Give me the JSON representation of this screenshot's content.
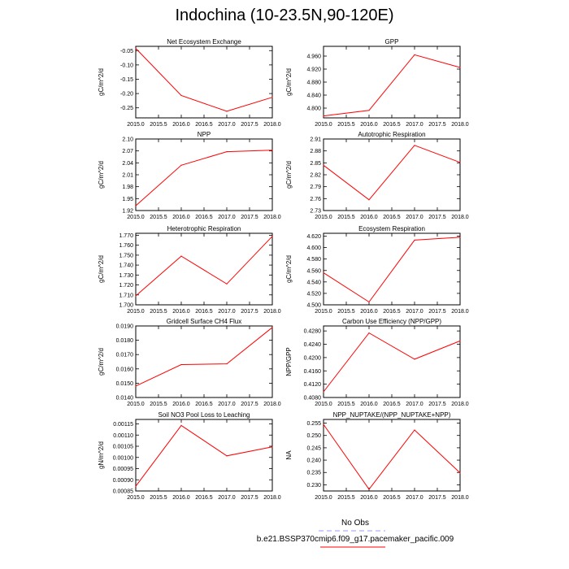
{
  "figure_title": "Indochina (10-23.5N,90-120E)",
  "legend": {
    "obs_label": "No Obs",
    "obs_color": "#9999ff",
    "model_label": "b.e21.BSSP370cmip6.f09_g17.pacemaker_pacific.009",
    "model_color": "#ff0000"
  },
  "chart_data": [
    {
      "type": "line",
      "title": "Net Ecosystem Exchange",
      "ylabel": "gC/m^2/d",
      "x": [
        2015.0,
        2016.0,
        2017.0,
        2018.0
      ],
      "values": [
        -0.042,
        -0.207,
        -0.262,
        -0.213
      ],
      "xlim": [
        2015.0,
        2018.0
      ],
      "ylim": [
        -0.285,
        -0.035
      ],
      "yticks": [
        -0.05,
        -0.1,
        -0.15,
        -0.2,
        -0.25
      ],
      "ytick_labels": [
        "-0.05",
        "-0.10",
        "-0.15",
        "-0.20",
        "-0.25"
      ],
      "xtick_labels": [
        "2015.0",
        "2015.5",
        "2016.0",
        "2016.5",
        "2017.0",
        "2017.5",
        "2018.0"
      ]
    },
    {
      "type": "line",
      "title": "GPP",
      "ylabel": "gC/m^2/d",
      "x": [
        2015.0,
        2016.0,
        2017.0,
        2018.0
      ],
      "values": [
        4.776,
        4.793,
        4.964,
        4.925
      ],
      "xlim": [
        2015.0,
        2018.0
      ],
      "ylim": [
        4.77,
        4.99
      ],
      "yticks": [
        4.8,
        4.84,
        4.88,
        4.92,
        4.96
      ],
      "ytick_labels": [
        "4.800",
        "4.840",
        "4.880",
        "4.920",
        "4.960"
      ],
      "xtick_labels": [
        "2015.0",
        "2015.5",
        "2016.0",
        "2016.5",
        "2017.0",
        "2017.5",
        "2018.0"
      ]
    },
    {
      "type": "line",
      "title": "NPP",
      "ylabel": "gC/m^2/d",
      "x": [
        2015.0,
        2016.0,
        2017.0,
        2018.0
      ],
      "values": [
        1.932,
        2.034,
        2.068,
        2.072
      ],
      "xlim": [
        2015.0,
        2018.0
      ],
      "ylim": [
        1.92,
        2.1
      ],
      "yticks": [
        1.92,
        1.95,
        1.98,
        2.01,
        2.04,
        2.07,
        2.1
      ],
      "ytick_labels": [
        "1.92",
        "1.95",
        "1.98",
        "2.01",
        "2.04",
        "2.07",
        "2.10"
      ],
      "xtick_labels": [
        "2015.0",
        "2015.5",
        "2016.0",
        "2016.5",
        "2017.0",
        "2017.5",
        "2018.0"
      ]
    },
    {
      "type": "line",
      "title": "Autotrophic Respiration",
      "ylabel": "gC/m^2/d",
      "x": [
        2015.0,
        2016.0,
        2017.0,
        2018.0
      ],
      "values": [
        2.844,
        2.757,
        2.894,
        2.851
      ],
      "xlim": [
        2015.0,
        2018.0
      ],
      "ylim": [
        2.73,
        2.91
      ],
      "yticks": [
        2.73,
        2.76,
        2.79,
        2.82,
        2.85,
        2.88,
        2.91
      ],
      "ytick_labels": [
        "2.73",
        "2.76",
        "2.79",
        "2.82",
        "2.85",
        "2.88",
        "2.91"
      ],
      "xtick_labels": [
        "2015.0",
        "2015.5",
        "2016.0",
        "2016.5",
        "2017.0",
        "2017.5",
        "2018.0"
      ]
    },
    {
      "type": "line",
      "title": "Heterotrophic Respiration",
      "ylabel": "gC/m^2/d",
      "x": [
        2015.0,
        2016.0,
        2017.0,
        2018.0
      ],
      "values": [
        1.709,
        1.749,
        1.721,
        1.769
      ],
      "xlim": [
        2015.0,
        2018.0
      ],
      "ylim": [
        1.7,
        1.772
      ],
      "yticks": [
        1.7,
        1.71,
        1.72,
        1.73,
        1.74,
        1.75,
        1.76,
        1.77
      ],
      "ytick_labels": [
        "1.700",
        "1.710",
        "1.720",
        "1.730",
        "1.740",
        "1.750",
        "1.760",
        "1.770"
      ],
      "xtick_labels": [
        "2015.0",
        "2015.5",
        "2016.0",
        "2016.5",
        "2017.0",
        "2017.5",
        "2018.0"
      ]
    },
    {
      "type": "line",
      "title": "Ecosystem Respiration",
      "ylabel": "gC/m^2/d",
      "x": [
        2015.0,
        2016.0,
        2017.0,
        2018.0
      ],
      "values": [
        4.556,
        4.505,
        4.613,
        4.618
      ],
      "xlim": [
        2015.0,
        2018.0
      ],
      "ylim": [
        4.5,
        4.625
      ],
      "yticks": [
        4.5,
        4.52,
        4.54,
        4.56,
        4.58,
        4.6,
        4.62
      ],
      "ytick_labels": [
        "4.500",
        "4.520",
        "4.540",
        "4.560",
        "4.580",
        "4.600",
        "4.620"
      ],
      "xtick_labels": [
        "2015.0",
        "2015.5",
        "2016.0",
        "2016.5",
        "2017.0",
        "2017.5",
        "2018.0"
      ]
    },
    {
      "type": "line",
      "title": "Gridcell Surface CH4 Flux",
      "ylabel": "gC/m^2/d",
      "x": [
        2015.0,
        2016.0,
        2017.0,
        2018.0
      ],
      "values": [
        0.0148,
        0.0163,
        0.01635,
        0.0189
      ],
      "xlim": [
        2015.0,
        2018.0
      ],
      "ylim": [
        0.014,
        0.019
      ],
      "yticks": [
        0.014,
        0.015,
        0.016,
        0.017,
        0.018,
        0.019
      ],
      "ytick_labels": [
        "0.0140",
        "0.0150",
        "0.0160",
        "0.0170",
        "0.0180",
        "0.0190"
      ],
      "xtick_labels": [
        "2015.0",
        "2015.5",
        "2016.0",
        "2016.5",
        "2017.0",
        "2017.5",
        "2018.0"
      ]
    },
    {
      "type": "line",
      "title": "Carbon Use Efficiency (NPP/GPP)",
      "ylabel": "NPP/GPP",
      "x": [
        2015.0,
        2016.0,
        2017.0,
        2018.0
      ],
      "values": [
        0.4097,
        0.4274,
        0.4195,
        0.425
      ],
      "xlim": [
        2015.0,
        2018.0
      ],
      "ylim": [
        0.408,
        0.4295
      ],
      "yticks": [
        0.408,
        0.412,
        0.416,
        0.42,
        0.424,
        0.428
      ],
      "ytick_labels": [
        "0.4080",
        "0.4120",
        "0.4160",
        "0.4200",
        "0.4240",
        "0.4280"
      ],
      "xtick_labels": [
        "2015.0",
        "2015.5",
        "2016.0",
        "2016.5",
        "2017.0",
        "2017.5",
        "2018.0"
      ]
    },
    {
      "type": "line",
      "title": "Soil NO3 Pool Loss to Leaching",
      "ylabel": "gN/m^2/d",
      "x": [
        2015.0,
        2016.0,
        2017.0,
        2018.0
      ],
      "values": [
        0.000871,
        0.001143,
        0.001007,
        0.001047
      ],
      "xlim": [
        2015.0,
        2018.0
      ],
      "ylim": [
        0.00085,
        0.00117
      ],
      "yticks": [
        0.00085,
        0.0009,
        0.00095,
        0.001,
        0.00105,
        0.0011,
        0.00115
      ],
      "ytick_labels": [
        "0.00085",
        "0.00090",
        "0.00095",
        "0.00100",
        "0.00105",
        "0.00110",
        "0.00115"
      ],
      "xtick_labels": [
        "2015.0",
        "2015.5",
        "2016.0",
        "2016.5",
        "2017.0",
        "2017.5",
        "2018.0"
      ]
    },
    {
      "type": "line",
      "title": "NPP_NUPTAKE/(NPP_NUPTAKE+NPP)",
      "ylabel": "NA",
      "x": [
        2015.0,
        2016.0,
        2017.0,
        2018.0
      ],
      "values": [
        0.2545,
        0.2282,
        0.2522,
        0.2348
      ],
      "xlim": [
        2015.0,
        2018.0
      ],
      "ylim": [
        0.2275,
        0.2565
      ],
      "yticks": [
        0.23,
        0.235,
        0.24,
        0.245,
        0.25,
        0.255
      ],
      "ytick_labels": [
        "0.230",
        "0.235",
        "0.240",
        "0.245",
        "0.250",
        "0.255"
      ],
      "xtick_labels": [
        "2015.0",
        "2015.5",
        "2016.0",
        "2016.5",
        "2017.0",
        "2017.5",
        "2018.0"
      ]
    }
  ]
}
